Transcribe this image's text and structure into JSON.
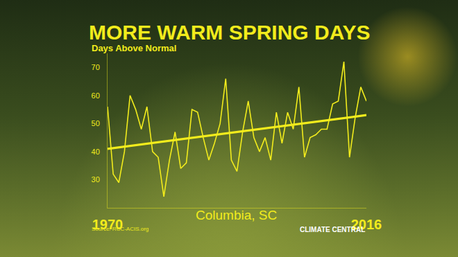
{
  "chart_data": {
    "type": "line",
    "title": "MORE WARM SPRING DAYS",
    "subtitle": "Days Above Normal",
    "annotation": "Columbia, SC",
    "source": "Source: RCC-ACIS.org",
    "credit": "CLIMATE CENTRAL",
    "x": [
      1970,
      1971,
      1972,
      1973,
      1974,
      1975,
      1976,
      1977,
      1978,
      1979,
      1980,
      1981,
      1982,
      1983,
      1984,
      1985,
      1986,
      1987,
      1988,
      1989,
      1990,
      1991,
      1992,
      1993,
      1994,
      1995,
      1996,
      1997,
      1998,
      1999,
      2000,
      2001,
      2002,
      2003,
      2004,
      2005,
      2006,
      2007,
      2008,
      2009,
      2010,
      2011,
      2012,
      2013,
      2014,
      2015,
      2016
    ],
    "values": [
      56,
      32,
      29,
      40,
      60,
      55,
      48,
      56,
      40,
      38,
      24,
      37,
      47,
      34,
      36,
      55,
      54,
      45,
      37,
      43,
      50,
      66,
      37,
      33,
      47,
      58,
      45,
      40,
      45,
      37,
      54,
      43,
      54,
      48,
      63,
      38,
      45,
      46,
      48,
      48,
      57,
      58,
      72,
      38,
      52,
      63,
      58
    ],
    "color": "#f2ec1c",
    "trend": {
      "x": [
        1970,
        2016
      ],
      "values": [
        41,
        53
      ]
    },
    "xlim": [
      1970,
      2016
    ],
    "xticks": [
      1970,
      2016
    ],
    "ylim": [
      20,
      75
    ],
    "yticks": [
      30,
      40,
      50,
      60,
      70
    ],
    "grid": false
  }
}
